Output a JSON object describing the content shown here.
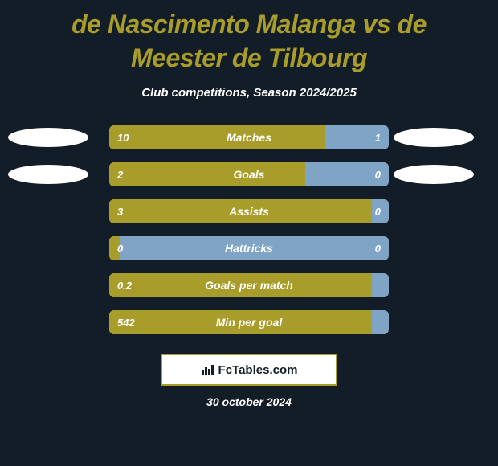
{
  "colors": {
    "page_bg": "#131d28",
    "title_color": "#a89c2b",
    "text_white": "#ffffff",
    "ellipse_fill": "#ffffff",
    "bar_empty": "#7fa4c6",
    "bar_fill": "#a89c2b",
    "footer_bg": "#ffffff",
    "footer_border": "#a89c2b",
    "footer_text": "#131d28"
  },
  "title": "de Nascimento Malanga vs de Meester de Tilbourg",
  "subtitle": "Club competitions, Season 2024/2025",
  "rows": [
    {
      "label": "Matches",
      "left_val": "10",
      "right_val": "1",
      "fill_pct": 77,
      "show_ellipses": true
    },
    {
      "label": "Goals",
      "left_val": "2",
      "right_val": "0",
      "fill_pct": 70,
      "show_ellipses": true
    },
    {
      "label": "Assists",
      "left_val": "3",
      "right_val": "0",
      "fill_pct": 94,
      "show_ellipses": false
    },
    {
      "label": "Hattricks",
      "left_val": "0",
      "right_val": "0",
      "fill_pct": 4,
      "show_ellipses": false
    },
    {
      "label": "Goals per match",
      "left_val": "0.2",
      "right_val": "",
      "fill_pct": 94,
      "show_ellipses": false
    },
    {
      "label": "Min per goal",
      "left_val": "542",
      "right_val": "",
      "fill_pct": 94,
      "show_ellipses": false
    }
  ],
  "footer_brand": "FcTables.com",
  "date": "30 october 2024"
}
